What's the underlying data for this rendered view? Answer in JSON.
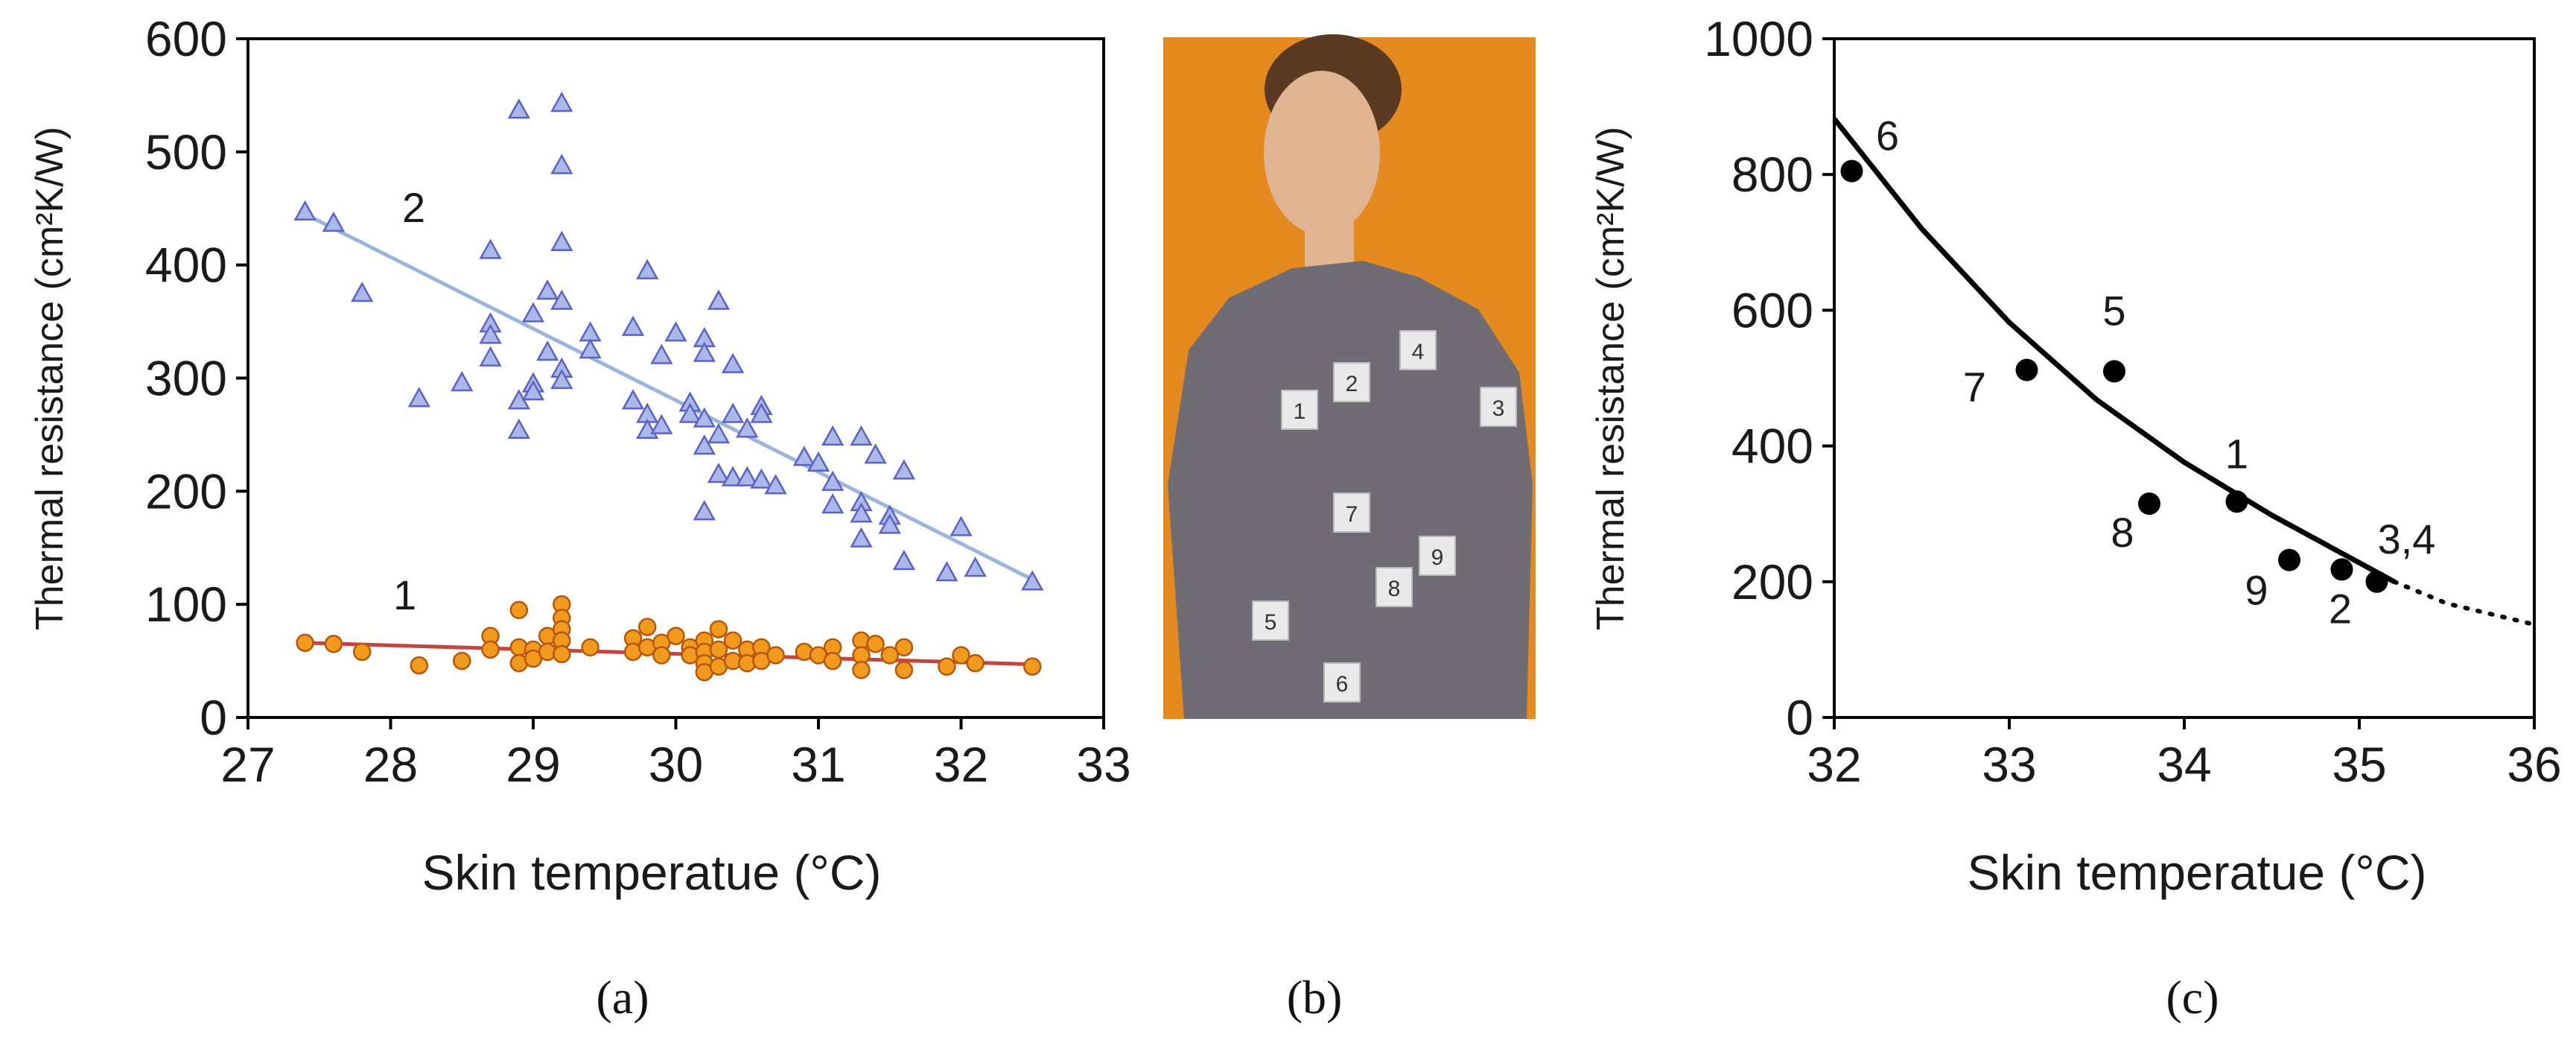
{
  "captions": [
    "(a)",
    "(b)",
    "(c)"
  ],
  "photo": {
    "labels": [
      "1",
      "2",
      "3",
      "4",
      "5",
      "6",
      "7",
      "8",
      "9"
    ],
    "colors": {
      "background": "#e58a1e",
      "shirt": "#6f6d73",
      "skin": "#e0b491",
      "hair": "#5a3a22"
    }
  },
  "chart_data": [
    {
      "type": "scatter",
      "panel": "(a)",
      "xlabel": "Skin temperatue (°C)",
      "ylabel": "Thermal resistance (cm²K/W)",
      "xlim": [
        27,
        33
      ],
      "ylim": [
        0,
        600
      ],
      "xticks": [
        "27",
        "28",
        "29",
        "30",
        "31",
        "32",
        "33"
      ],
      "yticks": [
        "0",
        "100",
        "200",
        "300",
        "400",
        "500",
        "600"
      ],
      "grid": false,
      "series": [
        {
          "name": "2",
          "marker": "triangle",
          "color": "#5b62c8",
          "fill": "#aab8ea",
          "trend_color": "#9db4dd",
          "trend": [
            [
              27.4,
              445
            ],
            [
              32.5,
              122
            ]
          ],
          "points": [
            [
              27.4,
              447
            ],
            [
              27.6,
              437
            ],
            [
              27.8,
              375
            ],
            [
              28.2,
              282
            ],
            [
              28.5,
              296
            ],
            [
              28.7,
              413
            ],
            [
              28.7,
              348
            ],
            [
              28.7,
              338
            ],
            [
              28.7,
              318
            ],
            [
              28.9,
              537
            ],
            [
              28.9,
              280
            ],
            [
              28.9,
              254
            ],
            [
              29.0,
              357
            ],
            [
              29.0,
              295
            ],
            [
              29.0,
              288
            ],
            [
              29.1,
              377
            ],
            [
              29.1,
              323
            ],
            [
              29.2,
              543
            ],
            [
              29.2,
              488
            ],
            [
              29.2,
              420
            ],
            [
              29.2,
              368
            ],
            [
              29.2,
              308
            ],
            [
              29.2,
              298
            ],
            [
              29.4,
              340
            ],
            [
              29.4,
              325
            ],
            [
              29.7,
              345
            ],
            [
              29.7,
              280
            ],
            [
              29.8,
              395
            ],
            [
              29.8,
              268
            ],
            [
              29.8,
              254
            ],
            [
              29.9,
              320
            ],
            [
              29.9,
              258
            ],
            [
              30.0,
              340
            ],
            [
              30.1,
              278
            ],
            [
              30.1,
              268
            ],
            [
              30.2,
              335
            ],
            [
              30.2,
              322
            ],
            [
              30.2,
              264
            ],
            [
              30.2,
              240
            ],
            [
              30.2,
              182
            ],
            [
              30.3,
              368
            ],
            [
              30.3,
              250
            ],
            [
              30.3,
              215
            ],
            [
              30.4,
              312
            ],
            [
              30.4,
              268
            ],
            [
              30.4,
              212
            ],
            [
              30.5,
              255
            ],
            [
              30.5,
              212
            ],
            [
              30.6,
              275
            ],
            [
              30.6,
              268
            ],
            [
              30.6,
              210
            ],
            [
              30.7,
              205
            ],
            [
              30.9,
              230
            ],
            [
              31.0,
              225
            ],
            [
              31.1,
              248
            ],
            [
              31.1,
              208
            ],
            [
              31.1,
              188
            ],
            [
              31.3,
              248
            ],
            [
              31.3,
              190
            ],
            [
              31.3,
              180
            ],
            [
              31.3,
              158
            ],
            [
              31.4,
              232
            ],
            [
              31.5,
              178
            ],
            [
              31.5,
              170
            ],
            [
              31.6,
              218
            ],
            [
              31.6,
              138
            ],
            [
              31.9,
              128
            ],
            [
              32.0,
              168
            ],
            [
              32.1,
              132
            ],
            [
              32.5,
              120
            ]
          ]
        },
        {
          "name": "1",
          "marker": "circle",
          "color": "#b8560a",
          "fill": "#f29a1e",
          "trend_color": "#c54540",
          "trend": [
            [
              27.4,
              66
            ],
            [
              32.5,
              47
            ]
          ],
          "points": [
            [
              27.4,
              66
            ],
            [
              27.6,
              65
            ],
            [
              27.8,
              58
            ],
            [
              28.2,
              46
            ],
            [
              28.5,
              50
            ],
            [
              28.7,
              72
            ],
            [
              28.7,
              60
            ],
            [
              28.9,
              95
            ],
            [
              28.9,
              62
            ],
            [
              28.9,
              48
            ],
            [
              29.0,
              60
            ],
            [
              29.0,
              52
            ],
            [
              29.1,
              72
            ],
            [
              29.1,
              58
            ],
            [
              29.2,
              100
            ],
            [
              29.2,
              88
            ],
            [
              29.2,
              78
            ],
            [
              29.2,
              68
            ],
            [
              29.2,
              56
            ],
            [
              29.4,
              62
            ],
            [
              29.7,
              70
            ],
            [
              29.7,
              58
            ],
            [
              29.8,
              80
            ],
            [
              29.8,
              62
            ],
            [
              29.9,
              66
            ],
            [
              29.9,
              55
            ],
            [
              30.0,
              72
            ],
            [
              30.1,
              62
            ],
            [
              30.1,
              55
            ],
            [
              30.2,
              68
            ],
            [
              30.2,
              58
            ],
            [
              30.2,
              48
            ],
            [
              30.2,
              40
            ],
            [
              30.3,
              78
            ],
            [
              30.3,
              60
            ],
            [
              30.3,
              45
            ],
            [
              30.4,
              68
            ],
            [
              30.4,
              50
            ],
            [
              30.5,
              60
            ],
            [
              30.5,
              48
            ],
            [
              30.6,
              62
            ],
            [
              30.6,
              50
            ],
            [
              30.7,
              55
            ],
            [
              30.9,
              58
            ],
            [
              31.0,
              55
            ],
            [
              31.1,
              62
            ],
            [
              31.1,
              50
            ],
            [
              31.3,
              68
            ],
            [
              31.3,
              55
            ],
            [
              31.3,
              42
            ],
            [
              31.4,
              65
            ],
            [
              31.5,
              55
            ],
            [
              31.6,
              62
            ],
            [
              31.6,
              42
            ],
            [
              31.9,
              45
            ],
            [
              32.0,
              55
            ],
            [
              32.1,
              48
            ],
            [
              32.5,
              45
            ]
          ]
        }
      ]
    },
    {
      "type": "scatter",
      "panel": "(c)",
      "xlabel": "Skin temperatue (°C)",
      "ylabel": "Thermal resistance (cm²K/W)",
      "xlim": [
        32,
        36
      ],
      "ylim": [
        0,
        1000
      ],
      "xticks": [
        "32",
        "33",
        "34",
        "35",
        "36"
      ],
      "yticks": [
        "0",
        "200",
        "400",
        "600",
        "800",
        "1000"
      ],
      "grid": false,
      "series": [
        {
          "name": "",
          "marker": "circle",
          "color": "#000000",
          "points": [
            {
              "x": 32.1,
              "y": 805,
              "label": "6"
            },
            {
              "x": 33.1,
              "y": 512,
              "label": "7"
            },
            {
              "x": 33.6,
              "y": 510,
              "label": "5"
            },
            {
              "x": 33.8,
              "y": 315,
              "label": "8"
            },
            {
              "x": 34.3,
              "y": 318,
              "label": "1"
            },
            {
              "x": 34.6,
              "y": 232,
              "label": "9"
            },
            {
              "x": 34.9,
              "y": 218,
              "label": "2"
            },
            {
              "x": 35.1,
              "y": 200,
              "label": "3,4"
            }
          ]
        }
      ],
      "fit_curve": {
        "color": "#000000",
        "solid": [
          [
            32.0,
            882
          ],
          [
            32.5,
            720
          ],
          [
            33.0,
            582
          ],
          [
            33.5,
            468
          ],
          [
            34.0,
            376
          ],
          [
            34.5,
            298
          ],
          [
            35.0,
            228
          ],
          [
            35.2,
            200
          ]
        ],
        "dotted": [
          [
            35.2,
            200
          ],
          [
            35.5,
            168
          ],
          [
            36.0,
            137
          ]
        ]
      }
    }
  ]
}
